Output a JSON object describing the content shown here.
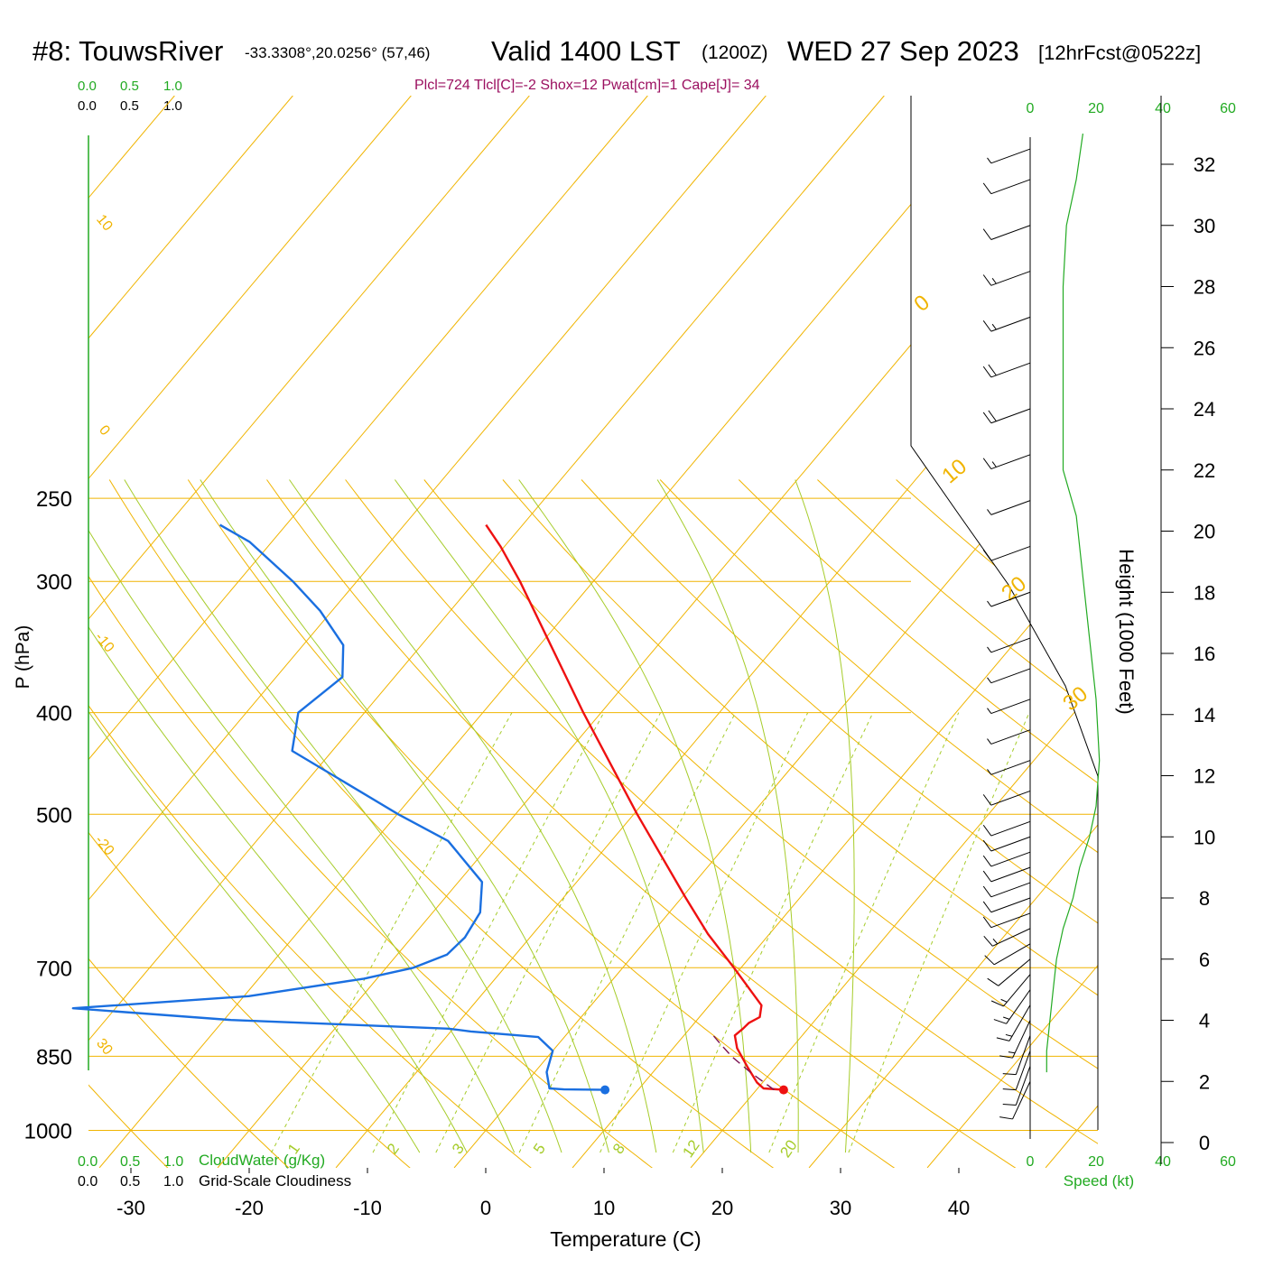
{
  "header": {
    "station": "#8: TouwsRiver",
    "coords": "-33.3308°,20.0256° (57,46)",
    "valid": "Valid 1400 LST",
    "zulu": "(1200Z)",
    "date": "WED 27 Sep 2023",
    "forecast": "[12hrFcst@0522z]",
    "indices": "Plcl=724 Tlcl[C]=-2 Shox=12 Pwat[cm]=1 Cape[J]= 34"
  },
  "colors": {
    "isobar": "#f0b400",
    "dry_adiabat": "#f0b400",
    "moist_adiabat": "#a6cc2a",
    "mixing_ratio": "#a6cc2a",
    "temperature": "#ee1111",
    "dewpoint": "#1a6fe0",
    "parcel": "#7a1050",
    "cloud": "#22aa22",
    "title_accent": "#9b1060",
    "wind": "#000000",
    "speed_profile": "#22aa22"
  },
  "chart_data": {
    "type": "line",
    "title": "#8: TouwsRiver  Valid 1400 LST (1200Z) WED 27 Sep 2023 [12hrFcst@0522z]",
    "xlabel": "Temperature (C)",
    "ylabel": "P (hPa)",
    "right_axis_label": "Height (1000 Feet)",
    "x_ticks": [
      -30,
      -20,
      -10,
      0,
      10,
      20,
      30,
      40
    ],
    "y_ticks": [
      250,
      300,
      400,
      500,
      700,
      850,
      1000
    ],
    "height_ticks": [
      0,
      2,
      4,
      6,
      8,
      10,
      12,
      14,
      16,
      18,
      20,
      22,
      24,
      26,
      28,
      30,
      32
    ],
    "skew_labels": [
      10,
      0,
      -10,
      -20,
      30
    ],
    "dry_adiabat_labels": [
      0,
      10,
      20,
      30
    ],
    "mixing_ratio_labels": [
      "1",
      "2",
      "3",
      "5",
      "8",
      "12",
      "20"
    ],
    "cloud_scale_top": [
      "0.0",
      "0.5",
      "1.0"
    ],
    "cloud_scale_top_black": [
      "0.0",
      "0.5",
      "1.0"
    ],
    "cloud_scale_bottom": [
      "0.0",
      "0.5",
      "1.0"
    ],
    "cloud_scale_bottom_black": [
      "0.0",
      "0.5",
      "1.0"
    ],
    "cloud_water_label": "CloudWater (g/Kg)",
    "cloudiness_label": "Grid-Scale Cloudiness",
    "speed_ticks": [
      "0",
      "20",
      "40",
      "60"
    ],
    "speed_label": "Speed (kt)",
    "series": [
      {
        "name": "temperature",
        "points": [
          {
            "p": 915,
            "t": 22.3
          },
          {
            "p": 912,
            "t": 20.5
          },
          {
            "p": 900,
            "t": 19.5
          },
          {
            "p": 870,
            "t": 17.6
          },
          {
            "p": 835,
            "t": 15.4
          },
          {
            "p": 812,
            "t": 14.3
          },
          {
            "p": 800,
            "t": 14.5
          },
          {
            "p": 790,
            "t": 14.6
          },
          {
            "p": 780,
            "t": 15.1
          },
          {
            "p": 760,
            "t": 14.4
          },
          {
            "p": 700,
            "t": 9.4
          },
          {
            "p": 650,
            "t": 4.8
          },
          {
            "p": 600,
            "t": 0.3
          },
          {
            "p": 500,
            "t": -9.7
          },
          {
            "p": 400,
            "t": -21.5
          },
          {
            "p": 300,
            "t": -36.2
          },
          {
            "p": 278,
            "t": -40.3
          },
          {
            "p": 265,
            "t": -43.1
          }
        ]
      },
      {
        "name": "dewpoint",
        "points": [
          {
            "p": 915,
            "t": 7.4
          },
          {
            "p": 914,
            "t": 3.7
          },
          {
            "p": 912,
            "t": 2.4
          },
          {
            "p": 880,
            "t": 1.0
          },
          {
            "p": 840,
            "t": 0.0
          },
          {
            "p": 815,
            "t": -2.2
          },
          {
            "p": 805,
            "t": -8.3
          },
          {
            "p": 800,
            "t": -10.4
          },
          {
            "p": 785,
            "t": -29.4
          },
          {
            "p": 765,
            "t": -43.6
          },
          {
            "p": 745,
            "t": -29.6
          },
          {
            "p": 717,
            "t": -21.1
          },
          {
            "p": 700,
            "t": -17.7
          },
          {
            "p": 680,
            "t": -15.8
          },
          {
            "p": 655,
            "t": -15.5
          },
          {
            "p": 620,
            "t": -16.0
          },
          {
            "p": 580,
            "t": -18.0
          },
          {
            "p": 530,
            "t": -23.8
          },
          {
            "p": 500,
            "t": -29.9
          },
          {
            "p": 435,
            "t": -43.4
          },
          {
            "p": 400,
            "t": -45.6
          },
          {
            "p": 370,
            "t": -44.4
          },
          {
            "p": 345,
            "t": -46.6
          },
          {
            "p": 320,
            "t": -51.0
          },
          {
            "p": 300,
            "t": -55.4
          },
          {
            "p": 275,
            "t": -61.9
          },
          {
            "p": 265,
            "t": -65.6
          }
        ]
      },
      {
        "name": "parcel",
        "points": [
          {
            "p": 915,
            "t": 21.5
          },
          {
            "p": 880,
            "t": 18.2
          },
          {
            "p": 850,
            "t": 15.5
          },
          {
            "p": 830,
            "t": 13.9
          },
          {
            "p": 810,
            "t": 12.3
          }
        ]
      }
    ],
    "surface_markers": [
      {
        "name": "surface-temperature",
        "p": 915,
        "t": 22.3
      },
      {
        "name": "surface-dewpoint",
        "p": 915,
        "t": 7.2
      }
    ],
    "wind_barbs": [
      {
        "h": 32.5,
        "dir": 250,
        "spd": 5
      },
      {
        "h": 31.5,
        "dir": 250,
        "spd": 8
      },
      {
        "h": 30.0,
        "dir": 250,
        "spd": 12
      },
      {
        "h": 28.5,
        "dir": 250,
        "spd": 15
      },
      {
        "h": 27.0,
        "dir": 250,
        "spd": 15
      },
      {
        "h": 25.5,
        "dir": 250,
        "spd": 18
      },
      {
        "h": 24.0,
        "dir": 250,
        "spd": 18
      },
      {
        "h": 22.5,
        "dir": 250,
        "spd": 17
      },
      {
        "h": 21.0,
        "dir": 250,
        "spd": 7
      },
      {
        "h": 19.5,
        "dir": 250,
        "spd": 9
      },
      {
        "h": 18.0,
        "dir": 250,
        "spd": 6
      },
      {
        "h": 16.5,
        "dir": 250,
        "spd": 6
      },
      {
        "h": 15.5,
        "dir": 250,
        "spd": 5
      },
      {
        "h": 14.5,
        "dir": 250,
        "spd": 6
      },
      {
        "h": 13.5,
        "dir": 250,
        "spd": 6
      },
      {
        "h": 12.5,
        "dir": 250,
        "spd": 7
      },
      {
        "h": 11.5,
        "dir": 250,
        "spd": 8
      },
      {
        "h": 10.5,
        "dir": 250,
        "spd": 9
      },
      {
        "h": 10.0,
        "dir": 250,
        "spd": 10
      },
      {
        "h": 9.5,
        "dir": 250,
        "spd": 10
      },
      {
        "h": 9.0,
        "dir": 250,
        "spd": 11
      },
      {
        "h": 8.5,
        "dir": 250,
        "spd": 11
      },
      {
        "h": 8.0,
        "dir": 250,
        "spd": 12
      },
      {
        "h": 7.5,
        "dir": 250,
        "spd": 12
      },
      {
        "h": 7.0,
        "dir": 245,
        "spd": 13
      },
      {
        "h": 6.5,
        "dir": 240,
        "spd": 12
      },
      {
        "h": 6.0,
        "dir": 230,
        "spd": 12
      },
      {
        "h": 5.5,
        "dir": 220,
        "spd": 13
      },
      {
        "h": 5.0,
        "dir": 215,
        "spd": 13
      },
      {
        "h": 4.5,
        "dir": 210,
        "spd": 13
      },
      {
        "h": 4.0,
        "dir": 205,
        "spd": 13
      },
      {
        "h": 3.5,
        "dir": 200,
        "spd": 12
      },
      {
        "h": 3.0,
        "dir": 200,
        "spd": 12
      },
      {
        "h": 2.5,
        "dir": 200,
        "spd": 11
      },
      {
        "h": 2.0,
        "dir": 205,
        "spd": 10
      }
    ],
    "speed_profile": [
      {
        "h": 2.3,
        "spd": 5
      },
      {
        "h": 3.0,
        "spd": 5
      },
      {
        "h": 4.0,
        "spd": 6
      },
      {
        "h": 5.0,
        "spd": 7
      },
      {
        "h": 6.0,
        "spd": 8
      },
      {
        "h": 7.0,
        "spd": 10
      },
      {
        "h": 8.0,
        "spd": 13
      },
      {
        "h": 9.0,
        "spd": 15
      },
      {
        "h": 10.0,
        "spd": 18
      },
      {
        "h": 11.0,
        "spd": 20
      },
      {
        "h": 12.5,
        "spd": 21
      },
      {
        "h": 14.5,
        "spd": 20
      },
      {
        "h": 16.5,
        "spd": 18
      },
      {
        "h": 18.5,
        "spd": 16
      },
      {
        "h": 20.5,
        "spd": 14
      },
      {
        "h": 22.0,
        "spd": 10
      },
      {
        "h": 24.0,
        "spd": 10
      },
      {
        "h": 26.0,
        "spd": 10
      },
      {
        "h": 28.0,
        "spd": 10
      },
      {
        "h": 30.0,
        "spd": 11
      },
      {
        "h": 31.5,
        "spd": 14
      },
      {
        "h": 33.0,
        "spd": 16
      }
    ]
  }
}
